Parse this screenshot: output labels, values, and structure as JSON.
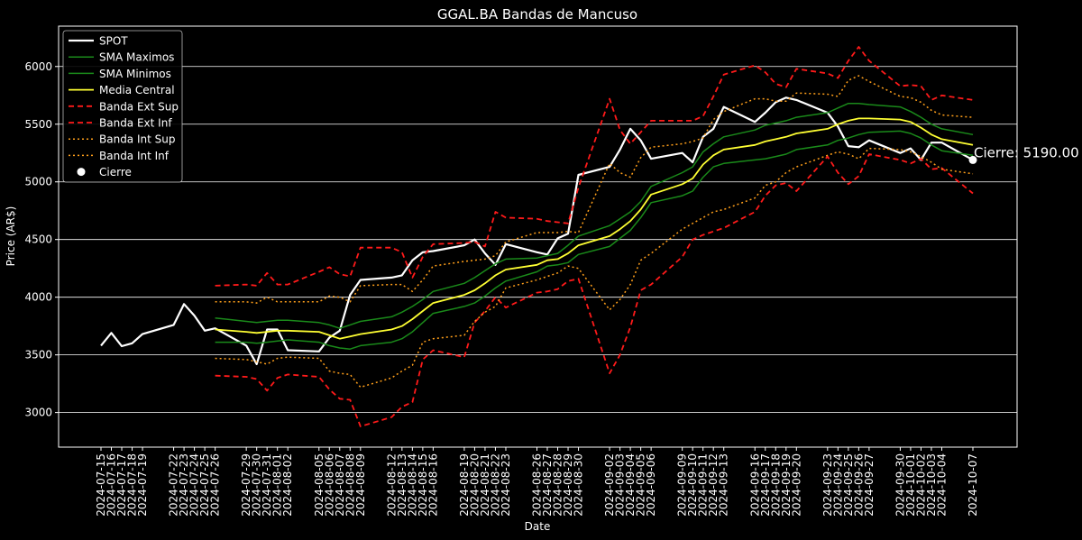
{
  "chart_data": {
    "type": "line",
    "title": "GGAL.BA Bandas de Mancuso",
    "xlabel": "Date",
    "ylabel": "Price (AR$)",
    "ylim": [
      2700,
      6350
    ],
    "yticks": [
      3000,
      3500,
      4000,
      4500,
      5000,
      5500,
      6000
    ],
    "grid": "horizontal",
    "legend_position": "top-left",
    "x": [
      "2024-07-15",
      "2024-07-16",
      "2024-07-17",
      "2024-07-18",
      "2024-07-19",
      "2024-07-22",
      "2024-07-23",
      "2024-07-24",
      "2024-07-25",
      "2024-07-26",
      "2024-07-29",
      "2024-07-30",
      "2024-07-31",
      "2024-08-01",
      "2024-08-02",
      "2024-08-05",
      "2024-08-06",
      "2024-08-07",
      "2024-08-08",
      "2024-08-09",
      "2024-08-12",
      "2024-08-13",
      "2024-08-14",
      "2024-08-15",
      "2024-08-16",
      "2024-08-19",
      "2024-08-20",
      "2024-08-21",
      "2024-08-22",
      "2024-08-23",
      "2024-08-26",
      "2024-08-27",
      "2024-08-28",
      "2024-08-29",
      "2024-08-30",
      "2024-09-02",
      "2024-09-03",
      "2024-09-04",
      "2024-09-05",
      "2024-09-06",
      "2024-09-09",
      "2024-09-10",
      "2024-09-11",
      "2024-09-12",
      "2024-09-13",
      "2024-09-16",
      "2024-09-17",
      "2024-09-18",
      "2024-09-19",
      "2024-09-20",
      "2024-09-23",
      "2024-09-24",
      "2024-09-25",
      "2024-09-26",
      "2024-09-27",
      "2024-09-30",
      "2024-10-01",
      "2024-10-02",
      "2024-10-03",
      "2024-10-04",
      "2024-10-07"
    ],
    "series": [
      {
        "name": "SPOT",
        "color": "#ffffff",
        "width": 2.2,
        "dash": "solid",
        "values": [
          3580,
          3690,
          3575,
          3600,
          3680,
          3760,
          3940,
          3840,
          3710,
          3730,
          3580,
          3420,
          3720,
          3720,
          3540,
          3530,
          3650,
          3710,
          4020,
          4150,
          4170,
          4190,
          4320,
          4390,
          4400,
          4450,
          4500,
          4380,
          4280,
          4460,
          4390,
          4370,
          4510,
          4550,
          5060,
          5130,
          5280,
          5460,
          5360,
          5200,
          5250,
          5170,
          5390,
          5460,
          5650,
          5520,
          5600,
          5690,
          5730,
          5710,
          5600,
          5480,
          5310,
          5300,
          5360,
          5250,
          5290,
          5190,
          5340,
          5340,
          5190
        ]
      },
      {
        "name": "SMA Maximos",
        "color": "#1a8a1a",
        "width": 1.5,
        "dash": "solid",
        "values": [
          null,
          null,
          null,
          null,
          null,
          null,
          null,
          null,
          null,
          3820,
          3790,
          3780,
          3790,
          3800,
          3800,
          3780,
          3760,
          3730,
          3760,
          3790,
          3830,
          3870,
          3920,
          3980,
          4050,
          4120,
          4170,
          4230,
          4290,
          4330,
          4340,
          4360,
          4380,
          4450,
          4530,
          4620,
          4680,
          4740,
          4830,
          4960,
          5080,
          5130,
          5260,
          5330,
          5390,
          5450,
          5490,
          5510,
          5530,
          5560,
          5600,
          5640,
          5680,
          5680,
          5670,
          5650,
          5610,
          5560,
          5500,
          5460,
          5410
        ]
      },
      {
        "name": "SMA Minimos",
        "color": "#1a8a1a",
        "width": 1.5,
        "dash": "solid",
        "values": [
          null,
          null,
          null,
          null,
          null,
          null,
          null,
          null,
          null,
          3610,
          3610,
          3600,
          3610,
          3620,
          3630,
          3610,
          3580,
          3560,
          3550,
          3580,
          3610,
          3640,
          3700,
          3780,
          3860,
          3920,
          3950,
          4010,
          4080,
          4140,
          4220,
          4270,
          4280,
          4300,
          4370,
          4440,
          4510,
          4580,
          4690,
          4820,
          4880,
          4920,
          5040,
          5130,
          5160,
          5190,
          5200,
          5220,
          5240,
          5280,
          5320,
          5360,
          5380,
          5410,
          5430,
          5440,
          5420,
          5380,
          5320,
          5270,
          5230
        ]
      },
      {
        "name": "Media Central",
        "color": "#ffff33",
        "width": 1.8,
        "dash": "solid",
        "values": [
          null,
          null,
          null,
          null,
          null,
          null,
          null,
          null,
          null,
          3720,
          3700,
          3690,
          3700,
          3710,
          3710,
          3700,
          3670,
          3640,
          3660,
          3680,
          3720,
          3750,
          3810,
          3880,
          3950,
          4020,
          4060,
          4120,
          4190,
          4240,
          4280,
          4320,
          4330,
          4380,
          4450,
          4530,
          4590,
          4660,
          4760,
          4890,
          4980,
          5030,
          5150,
          5230,
          5280,
          5320,
          5350,
          5370,
          5390,
          5420,
          5460,
          5500,
          5530,
          5550,
          5550,
          5540,
          5520,
          5470,
          5410,
          5370,
          5320
        ]
      },
      {
        "name": "Banda Ext Sup",
        "color": "#ff1a1a",
        "width": 1.8,
        "dash": "6,4",
        "values": [
          null,
          null,
          null,
          null,
          null,
          null,
          null,
          null,
          null,
          4100,
          4110,
          4100,
          4210,
          4110,
          4110,
          4220,
          4260,
          4200,
          4180,
          4430,
          4430,
          4390,
          4170,
          4350,
          4460,
          4470,
          4480,
          4440,
          4740,
          4690,
          4680,
          4660,
          4650,
          4640,
          4950,
          5720,
          5450,
          5330,
          5430,
          5530,
          5530,
          5530,
          5570,
          5740,
          5930,
          6010,
          5950,
          5850,
          5820,
          5980,
          5940,
          5900,
          6050,
          6170,
          6050,
          5830,
          5840,
          5830,
          5710,
          5750,
          5710
        ]
      },
      {
        "name": "Banda Ext Inf",
        "color": "#ff1a1a",
        "width": 1.8,
        "dash": "6,4",
        "values": [
          null,
          null,
          null,
          null,
          null,
          null,
          null,
          null,
          null,
          3320,
          3310,
          3290,
          3190,
          3300,
          3330,
          3310,
          3200,
          3120,
          3110,
          2880,
          2960,
          3050,
          3090,
          3460,
          3540,
          3480,
          3780,
          3880,
          4000,
          3910,
          4040,
          4050,
          4070,
          4140,
          4160,
          3340,
          3500,
          3740,
          4060,
          4110,
          4350,
          4500,
          4540,
          4570,
          4600,
          4740,
          4880,
          4970,
          4990,
          4920,
          5220,
          5080,
          4980,
          5050,
          5240,
          5190,
          5160,
          5200,
          5110,
          5120,
          4900
        ]
      },
      {
        "name": "Banda Int Sup",
        "color": "#ff9f1a",
        "width": 1.5,
        "dash": "2,3",
        "values": [
          null,
          null,
          null,
          null,
          null,
          null,
          null,
          null,
          null,
          3960,
          3960,
          3950,
          4000,
          3960,
          3960,
          3960,
          4010,
          4000,
          3960,
          4100,
          4110,
          4110,
          4050,
          4150,
          4270,
          4310,
          4320,
          4330,
          4360,
          4480,
          4560,
          4560,
          4560,
          4570,
          4560,
          5160,
          5080,
          5040,
          5210,
          5300,
          5330,
          5350,
          5380,
          5540,
          5610,
          5720,
          5720,
          5700,
          5700,
          5770,
          5760,
          5740,
          5880,
          5920,
          5870,
          5740,
          5730,
          5690,
          5620,
          5580,
          5560
        ]
      },
      {
        "name": "Banda Int Inf",
        "color": "#ff9f1a",
        "width": 1.5,
        "dash": "2,3",
        "values": [
          null,
          null,
          null,
          null,
          null,
          null,
          null,
          null,
          null,
          3470,
          3460,
          3440,
          3420,
          3470,
          3480,
          3470,
          3360,
          3340,
          3330,
          3220,
          3300,
          3360,
          3410,
          3610,
          3640,
          3670,
          3790,
          3870,
          3920,
          4080,
          4150,
          4180,
          4210,
          4270,
          4250,
          3890,
          3980,
          4110,
          4320,
          4380,
          4590,
          4640,
          4690,
          4740,
          4760,
          4860,
          4970,
          5000,
          5080,
          5130,
          5230,
          5260,
          5240,
          5200,
          5290,
          5280,
          5260,
          5220,
          5170,
          5110,
          5070
        ]
      }
    ],
    "close_point": {
      "name": "Cierre",
      "x": "2024-10-07",
      "y": 5190.0,
      "color": "#ffffff",
      "label": "Cierre: 5190.00"
    }
  }
}
